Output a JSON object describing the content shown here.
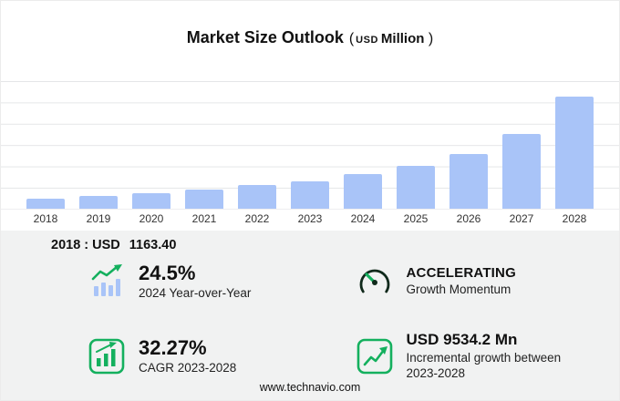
{
  "title": {
    "main": "Market Size Outlook",
    "unit_open": "(",
    "usd": "USD",
    "million": "Million",
    "unit_close": ")"
  },
  "chart_data": {
    "type": "bar",
    "title": "Market Size Outlook (USD Million)",
    "categories": [
      "2018",
      "2019",
      "2020",
      "2021",
      "2022",
      "2023",
      "2024",
      "2025",
      "2026",
      "2027",
      "2028"
    ],
    "values": [
      1163.4,
      1430,
      1780,
      2200,
      2680,
      3127.5,
      3893.7,
      4850,
      6200,
      8450,
      12661.7
    ],
    "xlabel": "",
    "ylabel": "USD Million",
    "ylim": [
      0,
      13000
    ],
    "grid": true,
    "legend": "none",
    "bar_color": "#a9c4f8"
  },
  "annotation": {
    "base_year_label": "2018 : USD",
    "base_year_value": "1163.40"
  },
  "stats": [
    {
      "id": "yoy",
      "icon": "bar-growth-arrow-icon",
      "value": "24.5%",
      "label": "2024 Year-over-Year"
    },
    {
      "id": "momentum",
      "icon": "speedometer-icon",
      "value": "ACCELERATING",
      "label": "Growth Momentum"
    },
    {
      "id": "cagr",
      "icon": "boxed-bar-chart-icon",
      "value": "32.27%",
      "label": "CAGR 2023-2028"
    },
    {
      "id": "incremental",
      "icon": "boxed-trend-arrow-icon",
      "value": "USD 9534.2 Mn",
      "label": "Incremental growth between 2023-2028"
    }
  ],
  "footer": {
    "url": "www.technavio.com"
  },
  "colors": {
    "bar": "#a9c4f8",
    "green": "#14b05e",
    "gridline": "#e5e6e8",
    "panel": "#f1f2f2",
    "text": "#111111"
  }
}
